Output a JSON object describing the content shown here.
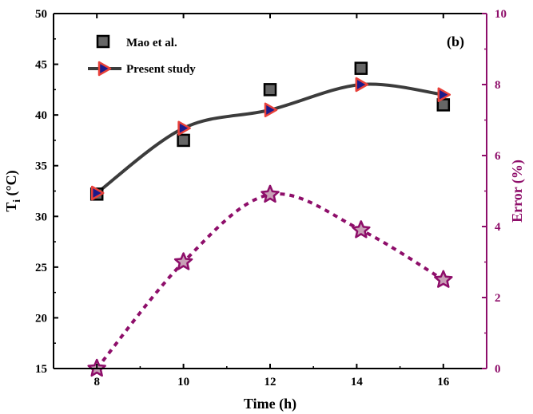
{
  "chart_data": {
    "type": "line",
    "panel_label": "(b)",
    "xlabel": "Time (h)",
    "ylabel_left": {
      "main": "T",
      "sub": "i",
      "unit": " (°C)"
    },
    "ylabel_right": "Error (%)",
    "xlim": [
      7,
      17
    ],
    "ylim_left": [
      15,
      50
    ],
    "ylim_right": [
      0,
      10
    ],
    "x_ticks": [
      "8",
      "10",
      "12",
      "14",
      "16"
    ],
    "y_ticks_left": [
      "15",
      "20",
      "25",
      "30",
      "35",
      "40",
      "45",
      "50"
    ],
    "y_ticks_right": [
      "0",
      "2",
      "4",
      "6",
      "8",
      "10"
    ],
    "grid": false,
    "legend_position": "top-left",
    "series": [
      {
        "name": "Mao et al.",
        "axis": "left",
        "marker": "square",
        "color": "#555555",
        "x": [
          8,
          10,
          12,
          14.1,
          16
        ],
        "y": [
          32.2,
          37.5,
          42.5,
          44.6,
          41.0
        ]
      },
      {
        "name": "Present study",
        "axis": "left",
        "marker": "triangle-right",
        "color": "#1a1a8c",
        "edge_color": "#e8403a",
        "line_color": "#3c3c3c",
        "x": [
          8,
          10,
          12,
          14.1,
          16
        ],
        "y": [
          32.3,
          38.7,
          40.5,
          43.0,
          42.0
        ]
      },
      {
        "axis": "right",
        "marker": "star",
        "color": "#8e0e6a",
        "fill": "#c8a0b6",
        "line_style": "dotted",
        "x": [
          8,
          10,
          12,
          14.1,
          16
        ],
        "y": [
          0.0,
          3.0,
          4.9,
          3.9,
          2.5
        ]
      }
    ]
  }
}
